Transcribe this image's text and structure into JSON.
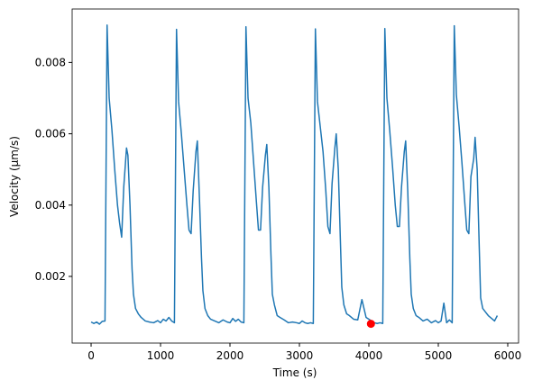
{
  "chart_data": {
    "type": "line",
    "xlabel": "Time (s)",
    "ylabel": "Velocity (µm/s)",
    "x": [
      0,
      40,
      80,
      120,
      160,
      200,
      230,
      260,
      300,
      340,
      380,
      410,
      440,
      470,
      510,
      530,
      560,
      590,
      610,
      640,
      680,
      720,
      780,
      840,
      900,
      960,
      1000,
      1040,
      1080,
      1120,
      1160,
      1200,
      1230,
      1260,
      1300,
      1340,
      1380,
      1410,
      1440,
      1470,
      1510,
      1530,
      1560,
      1590,
      1610,
      1640,
      1680,
      1720,
      1780,
      1840,
      1900,
      1960,
      2000,
      2040,
      2080,
      2120,
      2160,
      2200,
      2230,
      2260,
      2300,
      2340,
      2380,
      2410,
      2440,
      2470,
      2510,
      2530,
      2560,
      2590,
      2610,
      2640,
      2680,
      2720,
      2780,
      2840,
      2900,
      2960,
      3000,
      3040,
      3080,
      3120,
      3160,
      3200,
      3230,
      3260,
      3300,
      3340,
      3380,
      3410,
      3440,
      3470,
      3510,
      3530,
      3560,
      3590,
      3610,
      3640,
      3680,
      3720,
      3780,
      3840,
      3900,
      3960,
      4000,
      4040,
      4080,
      4120,
      4160,
      4200,
      4230,
      4260,
      4300,
      4340,
      4380,
      4410,
      4440,
      4470,
      4510,
      4530,
      4560,
      4590,
      4610,
      4640,
      4680,
      4720,
      4780,
      4840,
      4900,
      4960,
      5000,
      5040,
      5080,
      5120,
      5160,
      5200,
      5230,
      5260,
      5300,
      5340,
      5380,
      5410,
      5440,
      5470,
      5510,
      5530,
      5560,
      5590,
      5610,
      5640,
      5680,
      5720,
      5780,
      5810,
      5850
    ],
    "series": [
      {
        "color": "#1f77b4",
        "values": [
          0.00072,
          0.00068,
          0.00072,
          0.00066,
          0.00074,
          0.00075,
          0.00905,
          0.007,
          0.0061,
          0.005,
          0.004,
          0.0035,
          0.0031,
          0.0045,
          0.0056,
          0.0054,
          0.004,
          0.0022,
          0.0015,
          0.0011,
          0.00095,
          0.00085,
          0.00075,
          0.00072,
          0.0007,
          0.00076,
          0.0007,
          0.0008,
          0.00075,
          0.00085,
          0.00075,
          0.0007,
          0.00893,
          0.0069,
          0.006,
          0.005,
          0.004,
          0.0033,
          0.0032,
          0.0044,
          0.0055,
          0.0058,
          0.0042,
          0.0025,
          0.0016,
          0.0011,
          0.0009,
          0.0008,
          0.00075,
          0.0007,
          0.00078,
          0.00072,
          0.0007,
          0.00082,
          0.00074,
          0.0008,
          0.00072,
          0.0007,
          0.009,
          0.007,
          0.0063,
          0.0052,
          0.0041,
          0.0033,
          0.0033,
          0.0045,
          0.0054,
          0.0057,
          0.0045,
          0.0026,
          0.0015,
          0.0012,
          0.0009,
          0.00085,
          0.00078,
          0.0007,
          0.00072,
          0.0007,
          0.00068,
          0.00075,
          0.0007,
          0.00068,
          0.0007,
          0.00068,
          0.00894,
          0.0069,
          0.0062,
          0.0055,
          0.0044,
          0.0034,
          0.0032,
          0.0046,
          0.0056,
          0.006,
          0.005,
          0.003,
          0.0017,
          0.0012,
          0.00095,
          0.0009,
          0.0008,
          0.00078,
          0.00135,
          0.00085,
          0.0008,
          0.00075,
          0.0007,
          0.00068,
          0.0007,
          0.00068,
          0.00895,
          0.007,
          0.0061,
          0.0051,
          0.004,
          0.0034,
          0.0034,
          0.0045,
          0.0055,
          0.0058,
          0.0044,
          0.0025,
          0.0015,
          0.0011,
          0.0009,
          0.00085,
          0.00075,
          0.0008,
          0.0007,
          0.00076,
          0.0007,
          0.00075,
          0.00125,
          0.0007,
          0.00078,
          0.0007,
          0.00903,
          0.0071,
          0.0062,
          0.0052,
          0.0041,
          0.0033,
          0.0032,
          0.0048,
          0.0053,
          0.0059,
          0.005,
          0.0028,
          0.0014,
          0.0011,
          0.001,
          0.0009,
          0.0008,
          0.00075,
          0.0009
        ]
      }
    ],
    "points": [
      {
        "x": 4030,
        "y": 0.00067,
        "color": "#ff0000"
      }
    ],
    "xlim": [
      -273,
      6156
    ],
    "xticks": [
      0,
      1000,
      2000,
      3000,
      4000,
      5000,
      6000
    ],
    "ylim": [
      0.00013,
      0.0095
    ],
    "yticks": [
      0.002,
      0.004,
      0.006,
      0.008
    ]
  }
}
